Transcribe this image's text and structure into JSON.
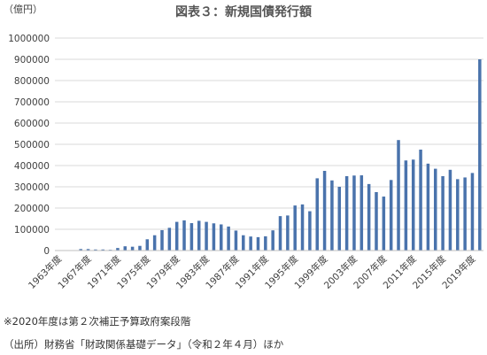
{
  "chart_data": {
    "type": "bar",
    "title": "図表３：新規国債発行額",
    "ylabel": "（億円）",
    "xlabel": "",
    "ylim": [
      0,
      1000000
    ],
    "yticks": [
      0,
      100000,
      200000,
      300000,
      400000,
      500000,
      600000,
      700000,
      800000,
      900000,
      1000000
    ],
    "ytick_labels": [
      "0",
      "100000",
      "200000",
      "300000",
      "400000",
      "500000",
      "600000",
      "700000",
      "800000",
      "900000",
      "1000000"
    ],
    "grid": true,
    "bar_color": "#4a73ac",
    "categories": [
      "1963年度",
      "1964年度",
      "1965年度",
      "1966年度",
      "1967年度",
      "1968年度",
      "1969年度",
      "1970年度",
      "1971年度",
      "1972年度",
      "1973年度",
      "1974年度",
      "1975年度",
      "1976年度",
      "1977年度",
      "1978年度",
      "1979年度",
      "1980年度",
      "1981年度",
      "1982年度",
      "1983年度",
      "1984年度",
      "1985年度",
      "1986年度",
      "1987年度",
      "1988年度",
      "1989年度",
      "1990年度",
      "1991年度",
      "1992年度",
      "1993年度",
      "1994年度",
      "1995年度",
      "1996年度",
      "1997年度",
      "1998年度",
      "1999年度",
      "2000年度",
      "2001年度",
      "2002年度",
      "2003年度",
      "2004年度",
      "2005年度",
      "2006年度",
      "2007年度",
      "2008年度",
      "2009年度",
      "2010年度",
      "2011年度",
      "2012年度",
      "2013年度",
      "2014年度",
      "2015年度",
      "2016年度",
      "2017年度",
      "2018年度",
      "2019年度",
      "2020年度"
    ],
    "tick_labels": [
      "1963年度",
      "1967年度",
      "1971年度",
      "1975年度",
      "1979年度",
      "1983年度",
      "1987年度",
      "1991年度",
      "1995年度",
      "1999年度",
      "2003年度",
      "2007年度",
      "2011年度",
      "2015年度",
      "2019年度"
    ],
    "values": [
      0,
      0,
      2000,
      7000,
      7000,
      5000,
      5000,
      3500,
      12000,
      20000,
      18000,
      22000,
      53000,
      72000,
      96000,
      107000,
      135000,
      142000,
      129000,
      140000,
      135000,
      128000,
      123000,
      113000,
      94000,
      72000,
      66000,
      63000,
      67000,
      95000,
      162000,
      165000,
      212000,
      217000,
      185000,
      340000,
      375000,
      330000,
      300000,
      350000,
      353000,
      354000,
      313000,
      275000,
      254000,
      332000,
      520000,
      424000,
      428000,
      475000,
      409000,
      385000,
      350000,
      380000,
      336000,
      344000,
      365000,
      900000
    ]
  },
  "notes": {
    "line1": "※2020年度は第２次補正予算政府案段階",
    "line2": "（出所）財務省「財政関係基礎データ」（令和２年４月）ほか"
  }
}
